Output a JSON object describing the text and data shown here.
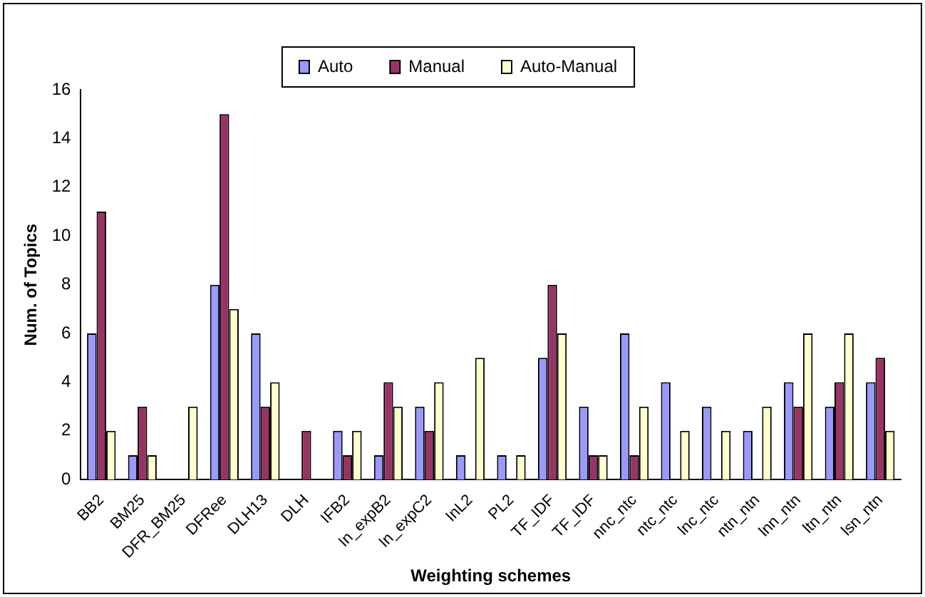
{
  "chart_data": {
    "type": "bar",
    "xlabel": "Weighting schemes",
    "ylabel": "Num. of Topics",
    "categories": [
      "BB2",
      "BM25",
      "DFR_BM25",
      "DFRee",
      "DLH13",
      "DLH",
      "IFB2",
      "In_expB2",
      "In_expC2",
      "InL2",
      "PL2",
      "TF_IDF",
      "TF_IDF",
      "nnc_ntc",
      "ntc_ntc",
      "lnc_ntc",
      "ntn_ntn",
      "lnn_ntn",
      "ltn_ntn",
      "lsn_ntn"
    ],
    "series": [
      {
        "name": "Auto",
        "color": "#9999ff",
        "values": [
          6,
          1,
          0,
          8,
          6,
          0,
          2,
          1,
          3,
          1,
          1,
          5,
          3,
          6,
          4,
          3,
          2,
          4,
          3,
          4
        ]
      },
      {
        "name": "Manual",
        "color": "#993366",
        "values": [
          11,
          3,
          0,
          15,
          3,
          2,
          1,
          4,
          2,
          0,
          0,
          8,
          1,
          1,
          0,
          0,
          0,
          3,
          4,
          5
        ]
      },
      {
        "name": "Auto-Manual",
        "color": "#ffffcc",
        "values": [
          2,
          1,
          3,
          7,
          4,
          0,
          2,
          3,
          4,
          5,
          1,
          6,
          1,
          3,
          2,
          2,
          3,
          6,
          6,
          2
        ]
      }
    ],
    "ylim": [
      0,
      16
    ],
    "yticks": [
      0,
      2,
      4,
      6,
      8,
      10,
      12,
      14,
      16
    ],
    "grid": false,
    "legend": "top"
  }
}
